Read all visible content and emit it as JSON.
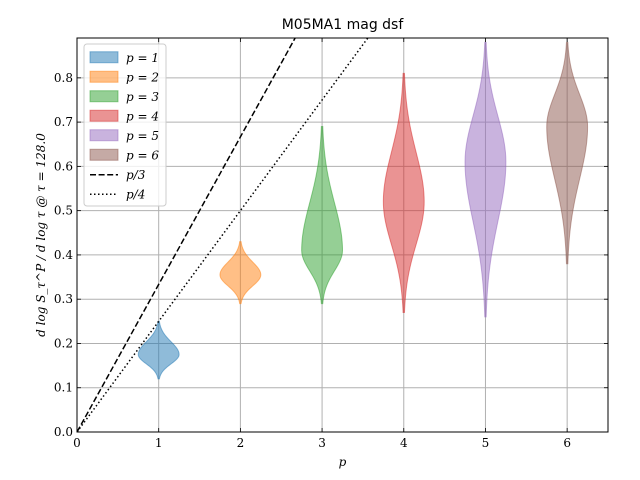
{
  "chart_data": {
    "type": "violin",
    "title": "M05MA1 mag dsf",
    "xlabel": "p",
    "ylabel": "d log S_τ^P / d log τ @ τ = 128.0",
    "xlim": [
      0,
      6.5
    ],
    "ylim": [
      0,
      0.89
    ],
    "xticks": [
      0,
      1,
      2,
      3,
      4,
      5,
      6
    ],
    "yticks": [
      0.0,
      0.1,
      0.2,
      0.3,
      0.4,
      0.5,
      0.6,
      0.7,
      0.8
    ],
    "grid": "x-and-y",
    "legend_position": "top-left",
    "series": [
      {
        "name": "p = 1",
        "p": 1,
        "color": "#1f77b4",
        "min": 0.12,
        "max": 0.25,
        "median": 0.175,
        "width": 0.25
      },
      {
        "name": "p = 2",
        "p": 2,
        "color": "#ff7f0e",
        "min": 0.29,
        "max": 0.43,
        "median": 0.355,
        "width": 0.25
      },
      {
        "name": "p = 3",
        "p": 3,
        "color": "#2ca02c",
        "min": 0.29,
        "max": 0.69,
        "median": 0.41,
        "width": 0.25
      },
      {
        "name": "p = 4",
        "p": 4,
        "color": "#d62728",
        "min": 0.27,
        "max": 0.81,
        "median": 0.52,
        "width": 0.25
      },
      {
        "name": "p = 5",
        "p": 5,
        "color": "#9467bd",
        "min": 0.26,
        "max": 0.88,
        "median": 0.61,
        "width": 0.25
      },
      {
        "name": "p = 6",
        "p": 6,
        "color": "#8c564b",
        "min": 0.38,
        "max": 0.88,
        "median": 0.69,
        "width": 0.25
      }
    ],
    "reference_lines": [
      {
        "name": "p/3",
        "slope": 0.3333,
        "style": "dashed"
      },
      {
        "name": "p/4",
        "slope": 0.25,
        "style": "dotted"
      }
    ]
  },
  "legend": {
    "entries": [
      "p = 1",
      "p = 2",
      "p = 3",
      "p = 4",
      "p = 5",
      "p = 6",
      "p/3",
      "p/4"
    ]
  }
}
